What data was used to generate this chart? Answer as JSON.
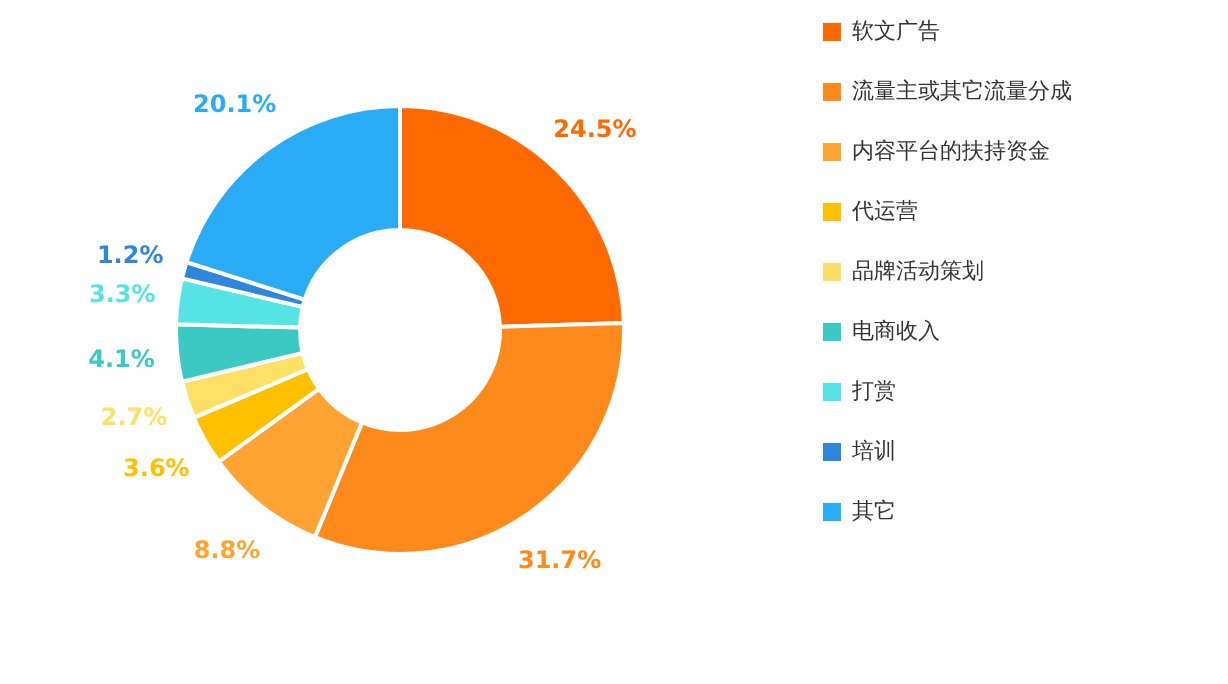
{
  "chart_data": {
    "type": "donut",
    "categories": [
      "软文广告",
      "流量主或其它流量分成",
      "内容平台的扶持资金",
      "代运营",
      "品牌活动策划",
      "电商收入",
      "打赏",
      "培训",
      "其它"
    ],
    "values": [
      24.5,
      31.7,
      8.8,
      3.6,
      2.7,
      4.1,
      3.3,
      1.2,
      20.1
    ],
    "value_labels": [
      "24.5%",
      "31.7%",
      "8.8%",
      "3.6%",
      "2.7%",
      "4.1%",
      "3.3%",
      "1.2%",
      "20.1%"
    ],
    "colors": [
      "#ff6a00",
      "#ff8a1c",
      "#ffa332",
      "#ffc000",
      "#ffe066",
      "#3cc9c3",
      "#55e3e3",
      "#2f86de",
      "#2aabf5"
    ],
    "legend": "right"
  }
}
